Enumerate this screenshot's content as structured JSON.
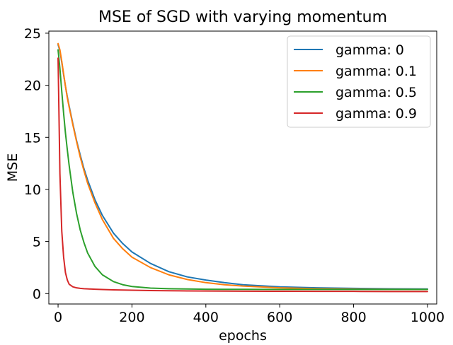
{
  "chart_data": {
    "type": "line",
    "title": "MSE of SGD with varying momentum",
    "xlabel": "epochs",
    "ylabel": "MSE",
    "xlim": [
      -25,
      1025
    ],
    "ylim": [
      -1,
      25.2
    ],
    "xticks": [
      0,
      200,
      400,
      600,
      800,
      1000
    ],
    "yticks": [
      0,
      5,
      10,
      15,
      20,
      25
    ],
    "grid": false,
    "legend_position": "top-right",
    "x": [
      0,
      5,
      10,
      15,
      20,
      25,
      30,
      40,
      50,
      60,
      70,
      80,
      100,
      120,
      150,
      175,
      200,
      250,
      300,
      350,
      400,
      450,
      500,
      600,
      700,
      800,
      900,
      1000
    ],
    "series": [
      {
        "name": "gamma: 0",
        "color": "#1f77b4",
        "values": [
          23.9,
          23.3,
          22.2,
          21.0,
          19.9,
          18.9,
          18.0,
          16.3,
          14.7,
          13.3,
          12.0,
          10.9,
          9.0,
          7.5,
          5.8,
          4.8,
          4.0,
          2.9,
          2.1,
          1.6,
          1.3,
          1.05,
          0.85,
          0.65,
          0.55,
          0.5,
          0.46,
          0.44
        ]
      },
      {
        "name": "gamma: 0.1",
        "color": "#ff7f0e",
        "values": [
          24.0,
          23.4,
          22.3,
          21.1,
          19.9,
          18.8,
          17.9,
          16.2,
          14.6,
          13.1,
          11.8,
          10.6,
          8.7,
          7.1,
          5.3,
          4.3,
          3.5,
          2.5,
          1.8,
          1.35,
          1.05,
          0.85,
          0.72,
          0.55,
          0.47,
          0.43,
          0.41,
          0.4
        ]
      },
      {
        "name": "gamma: 0.5",
        "color": "#2ca02c",
        "values": [
          23.4,
          21.6,
          19.4,
          17.3,
          15.4,
          13.8,
          12.3,
          9.7,
          7.7,
          6.1,
          4.9,
          3.9,
          2.6,
          1.8,
          1.15,
          0.85,
          0.68,
          0.53,
          0.47,
          0.44,
          0.42,
          0.41,
          0.41,
          0.4,
          0.4,
          0.4,
          0.4,
          0.4
        ]
      },
      {
        "name": "gamma: 0.9",
        "color": "#d62728",
        "values": [
          22.6,
          11.5,
          6.0,
          3.5,
          2.0,
          1.3,
          0.9,
          0.65,
          0.55,
          0.5,
          0.47,
          0.45,
          0.42,
          0.39,
          0.36,
          0.34,
          0.32,
          0.29,
          0.27,
          0.26,
          0.25,
          0.24,
          0.23,
          0.22,
          0.21,
          0.21,
          0.2,
          0.2
        ]
      }
    ]
  }
}
